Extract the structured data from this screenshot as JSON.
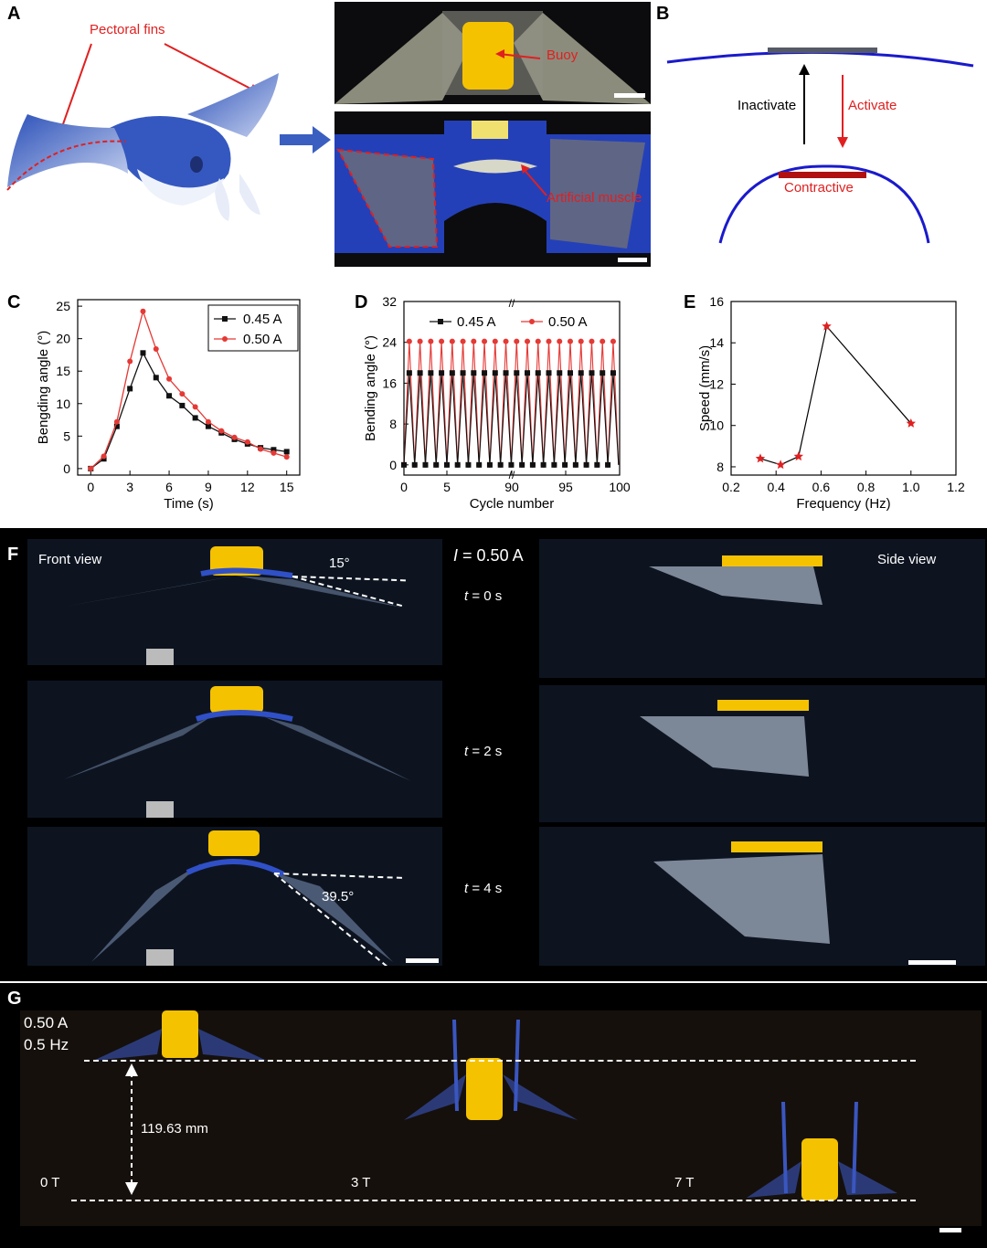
{
  "panels": {
    "A": {
      "label": "A",
      "pectoral_fins": "Pectoral fins",
      "buoy": "Buoy",
      "artificial_muscle": "Artificial muscle"
    },
    "B": {
      "label": "B",
      "inactivate": "Inactivate",
      "activate": "Activate",
      "contractive": "Contractive"
    },
    "C": {
      "label": "C"
    },
    "D": {
      "label": "D"
    },
    "E": {
      "label": "E"
    },
    "F": {
      "label": "F",
      "front_view": "Front view",
      "side_view": "Side view",
      "current_var": "I",
      "current_value": "= 0.50 A",
      "t_var": "t",
      "times": [
        "= 0 s",
        "= 2 s",
        "= 4 s"
      ],
      "angle_start": "15°",
      "angle_end": "39.5°"
    },
    "G": {
      "label": "G",
      "current": "0.50 A",
      "frequency": "0.5 Hz",
      "distance": "119.63 mm",
      "periods": [
        "0 T",
        "3 T",
        "7 T"
      ]
    }
  },
  "colors": {
    "series1": "#111111",
    "series2": "#e53935",
    "star": "#e02020",
    "beam": "#1a1acc",
    "muscle": "#b01010",
    "fin_blue": "#2a4fc0",
    "buoy": "#f5c200"
  },
  "chart_data": [
    {
      "id": "C",
      "type": "line",
      "xlabel": "Time (s)",
      "ylabel": "Bengding angle (°)",
      "xlim": [
        -1,
        16
      ],
      "ylim": [
        -1,
        26
      ],
      "xticks": [
        0,
        3,
        6,
        9,
        12,
        15
      ],
      "yticks": [
        0,
        5,
        10,
        15,
        20,
        25
      ],
      "legend_position": "top-right",
      "x": [
        0,
        1,
        2,
        3,
        4,
        5,
        6,
        7,
        8,
        9,
        10,
        11,
        12,
        13,
        14,
        15
      ],
      "series": [
        {
          "name": "0.45 A",
          "marker": "square",
          "values": [
            0,
            1.5,
            6.5,
            12.3,
            17.8,
            14,
            11.2,
            9.7,
            7.8,
            6.5,
            5.5,
            4.5,
            3.8,
            3.2,
            2.9,
            2.6
          ]
        },
        {
          "name": "0.50 A",
          "marker": "circle",
          "values": [
            0,
            1.9,
            7.2,
            16.5,
            24.2,
            18.4,
            13.8,
            11.5,
            9.5,
            7.2,
            5.8,
            4.8,
            4.1,
            3,
            2.4,
            1.8
          ]
        }
      ]
    },
    {
      "id": "D",
      "type": "line",
      "xlabel": "Cycle number",
      "ylabel": "Bending angle (°)",
      "ylim": [
        -2,
        32
      ],
      "yticks": [
        0,
        8,
        16,
        24,
        32
      ],
      "xticks": [
        "0",
        "5",
        "90",
        "95",
        "100"
      ],
      "legend_position": "top",
      "cycles": 20,
      "series": [
        {
          "name": "0.45 A",
          "marker": "square",
          "peak": 18,
          "trough": 0
        },
        {
          "name": "0.50 A",
          "marker": "circle",
          "peak": 24.2,
          "trough": 0
        }
      ]
    },
    {
      "id": "E",
      "type": "line",
      "xlabel": "Frequency (Hz)",
      "ylabel": "Speed (mm/s)",
      "xlim": [
        0.2,
        1.2
      ],
      "ylim": [
        7.6,
        16
      ],
      "xticks": [
        "0.2",
        "0.4",
        "0.6",
        "0.8",
        "1.0",
        "1.2"
      ],
      "yticks": [
        8,
        10,
        12,
        14,
        16
      ],
      "series": [
        {
          "name": "",
          "marker": "star",
          "x": [
            0.33,
            0.42,
            0.5,
            0.625,
            1.0
          ],
          "values": [
            8.4,
            8.1,
            8.5,
            14.8,
            10.1
          ]
        }
      ]
    }
  ]
}
